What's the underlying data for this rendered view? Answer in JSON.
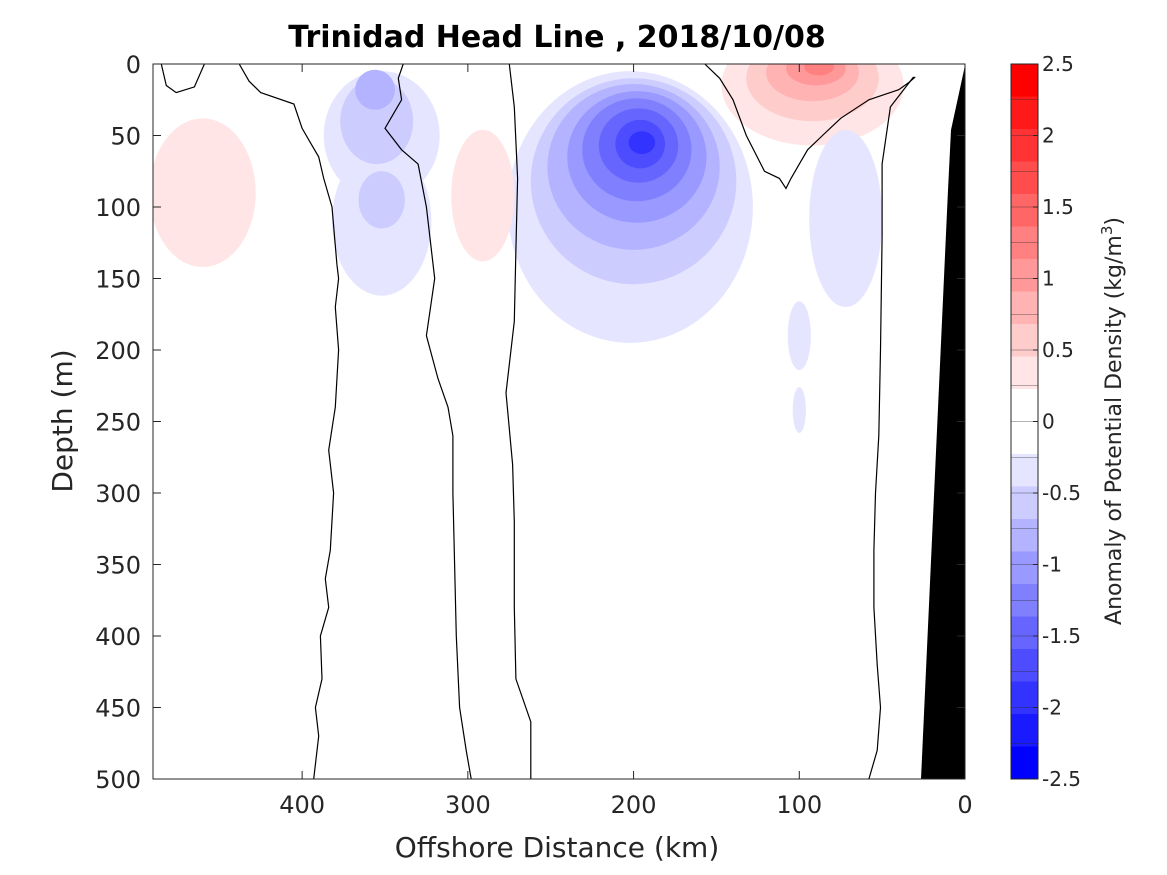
{
  "chart_data": {
    "type": "contour",
    "title": "Trinidad Head Line , 2018/10/08",
    "xlabel": "Offshore Distance (km)",
    "ylabel": "Depth (m)",
    "colorbar_label": "Anomaly of Potential Density (kg/m³)",
    "colorbar_label_main": "Anomaly of Potential Density (kg/m",
    "colorbar_label_sup": "3",
    "colorbar_label_end": ")",
    "xlim": [
      490,
      0
    ],
    "ylim": [
      0,
      500
    ],
    "x_reversed": true,
    "y_reversed": true,
    "xticks": [
      "400",
      "300",
      "200",
      "100",
      "0"
    ],
    "xtick_values": [
      400,
      300,
      200,
      100,
      0
    ],
    "yticks": [
      "0",
      "50",
      "100",
      "150",
      "200",
      "250",
      "300",
      "350",
      "400",
      "450",
      "500"
    ],
    "ytick_values": [
      0,
      50,
      100,
      150,
      200,
      250,
      300,
      350,
      400,
      450,
      500
    ],
    "clim": [
      -2.5,
      2.5
    ],
    "colorbar_ticks": [
      "2.5",
      "2",
      "1.5",
      "1",
      "0.5",
      "0",
      "-0.5",
      "-1",
      "-1.5",
      "-2",
      "-2.5"
    ],
    "colorbar_tick_values": [
      2.5,
      2,
      1.5,
      1,
      0.5,
      0,
      -0.5,
      -1,
      -1.5,
      -2,
      -2.5
    ],
    "colorbar_levels": [
      2.5,
      2.25,
      2,
      1.75,
      1.5,
      1.25,
      1,
      0.75,
      0.5,
      0.25,
      0,
      -0.25,
      -0.5,
      -0.75,
      -1,
      -1.25,
      -1.5,
      -1.75,
      -2,
      -2.25,
      -2.5
    ],
    "colormap": [
      "#ff0000",
      "#ff1a1a",
      "#ff3333",
      "#ff4d4d",
      "#ff6666",
      "#ff8080",
      "#ff9999",
      "#ffb3b3",
      "#ffcccc",
      "#ffe5e5",
      "#ffffff",
      "#ffffff",
      "#e5e5ff",
      "#ccccff",
      "#b3b3ff",
      "#9999ff",
      "#8080ff",
      "#6666ff",
      "#4d4dff",
      "#3333ff",
      "#1a1aff",
      "#0000ff"
    ],
    "zero_contour_color": "#000000",
    "bathymetry_color": "#000000",
    "features": [
      {
        "type": "anomaly",
        "sign": "negative",
        "center_km": 200,
        "center_depth_m": 55,
        "peak": -2.0,
        "depth_extent_m": [
          0,
          195
        ]
      },
      {
        "type": "anomaly",
        "sign": "negative",
        "center_km": 355,
        "center_depth_m": 20,
        "peak": -1.0,
        "depth_extent_m": [
          0,
          160
        ]
      },
      {
        "type": "anomaly",
        "sign": "positive",
        "center_km": 90,
        "center_depth_m": 5,
        "peak": 1.25,
        "depth_extent_m": [
          0,
          60
        ]
      },
      {
        "type": "anomaly",
        "sign": "positive",
        "center_km": 460,
        "center_depth_m": 90,
        "peak": 0.25,
        "depth_extent_m": [
          35,
          140
        ]
      },
      {
        "type": "anomaly",
        "sign": "positive",
        "center_km": 290,
        "center_depth_m": 90,
        "peak": 0.25,
        "depth_extent_m": [
          45,
          140
        ]
      },
      {
        "type": "anomaly",
        "sign": "negative",
        "center_km": 70,
        "center_depth_m": 110,
        "peak": -0.25,
        "depth_extent_m": [
          40,
          170
        ]
      },
      {
        "type": "anomaly",
        "sign": "negative",
        "center_km": 100,
        "center_depth_m": 190,
        "peak": -0.25,
        "depth_extent_m": [
          160,
          210
        ]
      },
      {
        "type": "anomaly",
        "sign": "negative",
        "center_km": 100,
        "center_depth_m": 240,
        "peak": -0.25,
        "depth_extent_m": [
          225,
          260
        ]
      }
    ]
  }
}
